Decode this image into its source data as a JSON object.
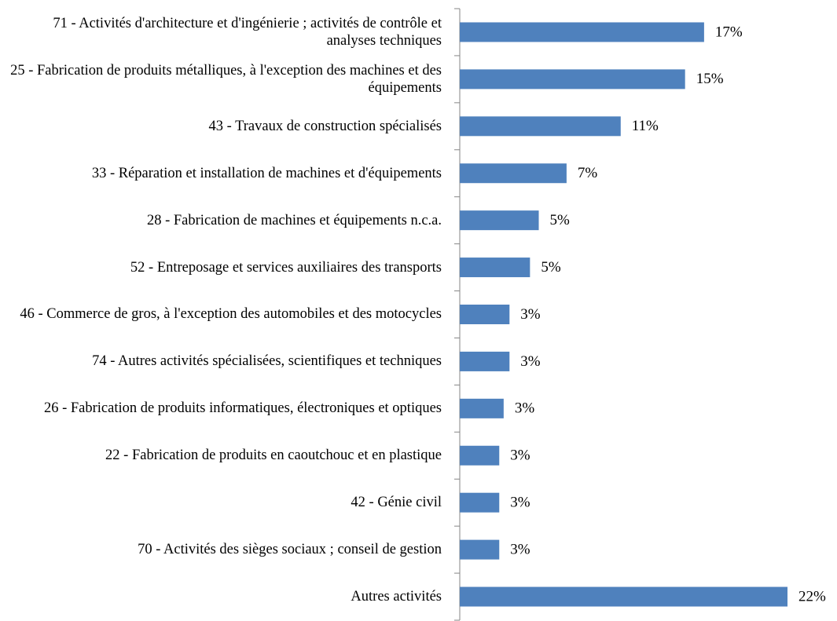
{
  "chart_data": {
    "type": "barh",
    "categories": [
      "71 - Activités d'architecture et d'ingénierie ; activités de contrôle et analyses techniques",
      "25 - Fabrication de produits métalliques, à l'exception des machines et des équipements",
      "43 - Travaux de construction spécialisés",
      "33 - Réparation et installation de machines et d'équipements",
      "28 - Fabrication de machines et équipements n.c.a.",
      "52 - Entreposage et services auxiliaires des transports",
      "46 - Commerce de gros, à l'exception des automobiles et des motocycles",
      "74 - Autres activités spécialisées, scientifiques et techniques",
      "26 - Fabrication de produits informatiques, électroniques et optiques",
      "22 - Fabrication de produits en caoutchouc et en plastique",
      "42 - Génie civil",
      "70 - Activités des sièges sociaux ; conseil de gestion",
      "Autres activités"
    ],
    "values": [
      16.7,
      15.4,
      11.0,
      7.3,
      5.4,
      4.8,
      3.4,
      3.4,
      3.0,
      2.7,
      2.7,
      2.7,
      22.4
    ],
    "value_labels": [
      "17%",
      "15%",
      "11%",
      "7%",
      "5%",
      "5%",
      "3%",
      "3%",
      "3%",
      "3%",
      "3%",
      "3%",
      "22%"
    ],
    "color": "#4f81bd",
    "xlim": [
      0,
      22.4
    ]
  }
}
